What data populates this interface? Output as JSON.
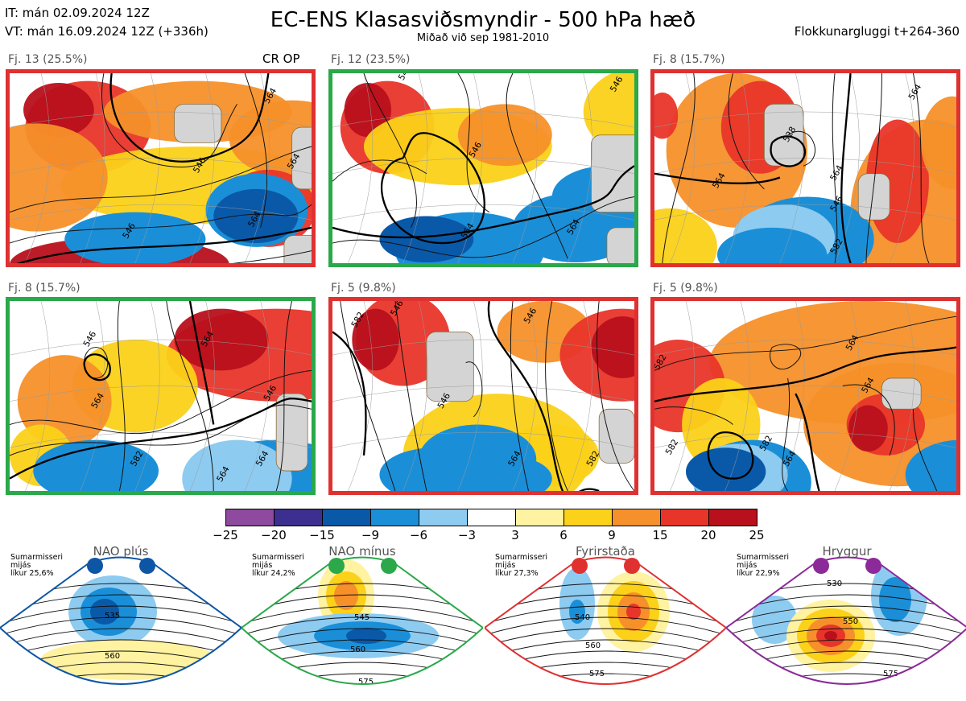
{
  "header": {
    "it_line": "IT: mán 02.09.2024 12Z",
    "vt_line": "VT: mán 16.09.2024 12Z  (+336h)",
    "title": "EC-ENS Klasasviðsmyndir - 500 hPa hæð",
    "subtitle": "Miðað við sep 1981-2010",
    "window": "Flokkunargluggi t+264-360"
  },
  "panels": [
    {
      "label": "Fj. 13 (25.5%)",
      "border_color": "#e03131",
      "crop": "CR OP",
      "contours": [
        "546",
        "564",
        "546",
        "564",
        "564"
      ]
    },
    {
      "label": "Fj. 12 (23.5%)",
      "border_color": "#2aa84a",
      "crop": "",
      "contours": [
        "546",
        "546",
        "546",
        "564",
        "564"
      ]
    },
    {
      "label": "Fj. 8 (15.7%)",
      "border_color": "#e03131",
      "crop": "",
      "contours": [
        "528",
        "546",
        "564",
        "564",
        "564",
        "582"
      ]
    },
    {
      "label": "Fj. 8 (15.7%)",
      "border_color": "#2aa84a",
      "crop": "",
      "contours": [
        "546",
        "546",
        "564",
        "564",
        "582",
        "564",
        "564"
      ]
    },
    {
      "label": "Fj. 5 (9.8%)",
      "border_color": "#e03131",
      "crop": "",
      "contours": [
        "582",
        "546",
        "546",
        "546",
        "564",
        "582"
      ]
    },
    {
      "label": "Fj. 5 (9.8%)",
      "border_color": "#e03131",
      "crop": "",
      "contours": [
        "564",
        "582",
        "564",
        "582",
        "564",
        "582"
      ]
    }
  ],
  "colorbar": {
    "labels": [
      "−25",
      "−20",
      "−15",
      "−9",
      "−6",
      "−3",
      "3",
      "6",
      "9",
      "15",
      "20",
      "25"
    ],
    "colors": [
      "#8e4a9e",
      "#3d2f8f",
      "#0a59a8",
      "#1a8fd8",
      "#8ecbf0",
      "#ffffff",
      "#fff2a1",
      "#fbd119",
      "#f6902a",
      "#e8352a",
      "#b8101c"
    ]
  },
  "regimes": [
    {
      "name": "NAO plús",
      "color": "#0d56a6",
      "season": "Sumarmisseri",
      "period": "mijás",
      "prob": "líkur 25,6%",
      "contours": [
        "535",
        "560"
      ]
    },
    {
      "name": "NAO mínus",
      "color": "#2aa84a",
      "season": "Sumarmisseri",
      "period": "mijás",
      "prob": "líkur 24,2%",
      "contours": [
        "545",
        "560",
        "575"
      ]
    },
    {
      "name": "Fyrirstaða",
      "color": "#e03131",
      "season": "Sumarmisseri",
      "period": "mijás",
      "prob": "líkur 27,3%",
      "contours": [
        "540",
        "560",
        "575"
      ]
    },
    {
      "name": "Hryggur",
      "color": "#8b2a98",
      "season": "Sumarmisseri",
      "period": "mijás",
      "prob": "líkur 22,9%",
      "contours": [
        "530",
        "550",
        "575"
      ]
    }
  ]
}
